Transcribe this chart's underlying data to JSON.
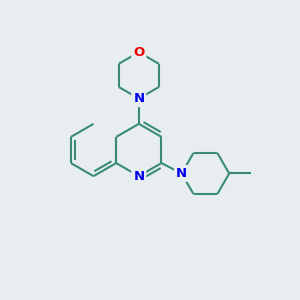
{
  "bg_color": "#e8eef0",
  "bond_color": "#3a8a7a",
  "N_color": "#0000ee",
  "O_color": "#ee0000",
  "line_width": 1.5,
  "font_size_atom": 9.5,
  "figsize": [
    3.0,
    3.0
  ],
  "dpi": 100,
  "xlim": [
    0,
    10
  ],
  "ylim": [
    0,
    10
  ]
}
